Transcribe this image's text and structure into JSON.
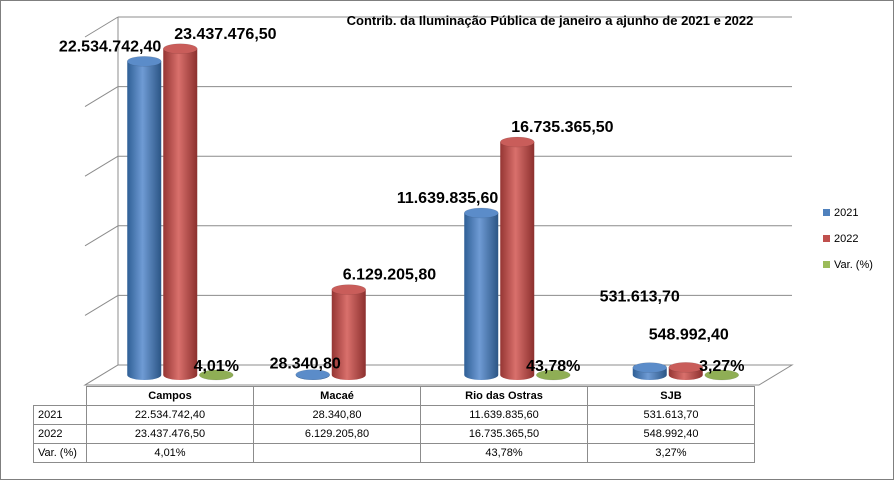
{
  "chart_data": {
    "type": "bar",
    "title": "Contrib. da Iluminação Pública de janeiro a ajunho de 2021 e 2022",
    "categories": [
      "Campos",
      "Macaé",
      "Rio das Ostras",
      "SJB"
    ],
    "series": [
      {
        "name": "2021",
        "values": [
          22534742.4,
          28340.8,
          11639835.6,
          531613.7
        ],
        "labels": [
          "22.534.742,40",
          "28.340,80",
          "11.639.835,60",
          "531.613,70"
        ],
        "color": "#4f81bd"
      },
      {
        "name": "2022",
        "values": [
          23437476.5,
          6129205.8,
          16735365.5,
          548992.4
        ],
        "labels": [
          "23.437.476,50",
          "6.129.205,80",
          "16.735.365,50",
          "548.992,40"
        ],
        "color": "#c0504d"
      },
      {
        "name": "Var. (%)",
        "values": [
          4.01,
          null,
          43.78,
          3.27
        ],
        "labels": [
          "4,01%",
          "",
          "43,78%",
          "3,27%"
        ],
        "color": "#9bbb59"
      }
    ],
    "ylim": [
      0,
      25000000
    ],
    "grid": true,
    "legend": "right",
    "data_table": true
  }
}
